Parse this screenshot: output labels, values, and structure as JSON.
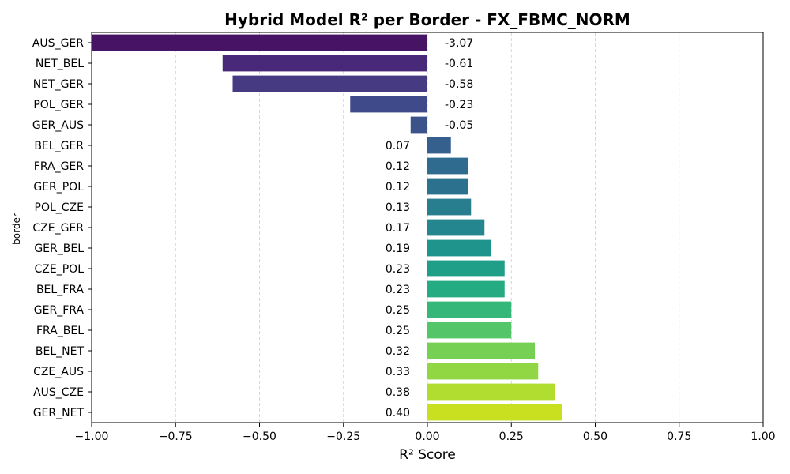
{
  "chart_data": {
    "type": "bar",
    "orientation": "horizontal",
    "title": "Hybrid Model R² per Border - FX_FBMC_NORM",
    "xlabel": "R² Score",
    "ylabel": "border",
    "xlim": [
      -1.0,
      1.0
    ],
    "xticks": [
      -1.0,
      -0.75,
      -0.5,
      -0.25,
      0.0,
      0.25,
      0.5,
      0.75,
      1.0
    ],
    "xtick_labels": [
      "−1.00",
      "−0.75",
      "−0.50",
      "−0.25",
      "0.00",
      "0.25",
      "0.50",
      "0.75",
      "1.00"
    ],
    "grid": "vertical dashed",
    "categories": [
      "AUS_GER",
      "NET_BEL",
      "NET_GER",
      "POL_GER",
      "GER_AUS",
      "BEL_GER",
      "FRA_GER",
      "GER_POL",
      "POL_CZE",
      "CZE_GER",
      "GER_BEL",
      "CZE_POL",
      "BEL_FRA",
      "GER_FRA",
      "FRA_BEL",
      "BEL_NET",
      "CZE_AUS",
      "AUS_CZE",
      "GER_NET"
    ],
    "values": [
      -3.07,
      -0.61,
      -0.58,
      -0.23,
      -0.05,
      0.07,
      0.12,
      0.12,
      0.13,
      0.17,
      0.19,
      0.23,
      0.23,
      0.25,
      0.25,
      0.32,
      0.33,
      0.38,
      0.4
    ],
    "value_labels": [
      "-3.07",
      "-0.61",
      "-0.58",
      "-0.23",
      "-0.05",
      "0.07",
      "0.12",
      "0.12",
      "0.13",
      "0.17",
      "0.19",
      "0.23",
      "0.23",
      "0.25",
      "0.25",
      "0.32",
      "0.33",
      "0.38",
      "0.40"
    ],
    "colors": [
      "#471365",
      "#482878",
      "#463b83",
      "#3f4a8a",
      "#3b528b",
      "#35608d",
      "#2f6b8e",
      "#2c728e",
      "#287d8e",
      "#24868e",
      "#1f948c",
      "#1f9f88",
      "#25ab82",
      "#35b779",
      "#54c568",
      "#75d054",
      "#90d743",
      "#b0dd2f",
      "#c8e020"
    ]
  }
}
